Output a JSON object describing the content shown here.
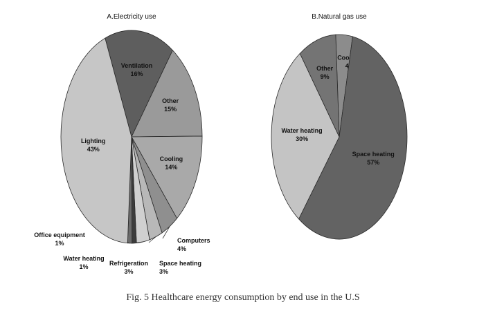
{
  "caption": "Fig. 5 Healthcare energy consumption by end use in the U.S",
  "chart_data": [
    {
      "type": "pie",
      "title": "A.Electricity use",
      "slices": [
        {
          "label": "Ventilation",
          "value": 16,
          "display": "16%",
          "color": "#5e5e5e"
        },
        {
          "label": "Other",
          "value": 15,
          "display": "15%",
          "color": "#9a9a9a"
        },
        {
          "label": "Cooling",
          "value": 14,
          "display": "14%",
          "color": "#a9a9a9"
        },
        {
          "label": "Computers",
          "value": 4,
          "display": "4%",
          "color": "#8f8f8f"
        },
        {
          "label": "Space heating",
          "value": 3,
          "display": "3%",
          "color": "#b8b8b8"
        },
        {
          "label": "Refrigeration",
          "value": 3,
          "display": "3%",
          "color": "#d0d0d0"
        },
        {
          "label": "Water heating",
          "value": 1,
          "display": "1%",
          "color": "#3c3c3c"
        },
        {
          "label": "Office equipment",
          "value": 1,
          "display": "1%",
          "color": "#6b6b6b"
        },
        {
          "label": "Lighting",
          "value": 43,
          "display": "43%",
          "color": "#c6c6c6"
        }
      ]
    },
    {
      "type": "pie",
      "title": "B.Natural gas use",
      "slices": [
        {
          "label": "Cooking",
          "value": 4,
          "display": "4%",
          "color": "#8c8c8c"
        },
        {
          "label": "Space heating",
          "value": 57,
          "display": "57%",
          "color": "#636363"
        },
        {
          "label": "Water heating",
          "value": 30,
          "display": "30%",
          "color": "#c4c4c4"
        },
        {
          "label": "Other",
          "value": 9,
          "display": "9%",
          "color": "#747474"
        }
      ]
    }
  ]
}
